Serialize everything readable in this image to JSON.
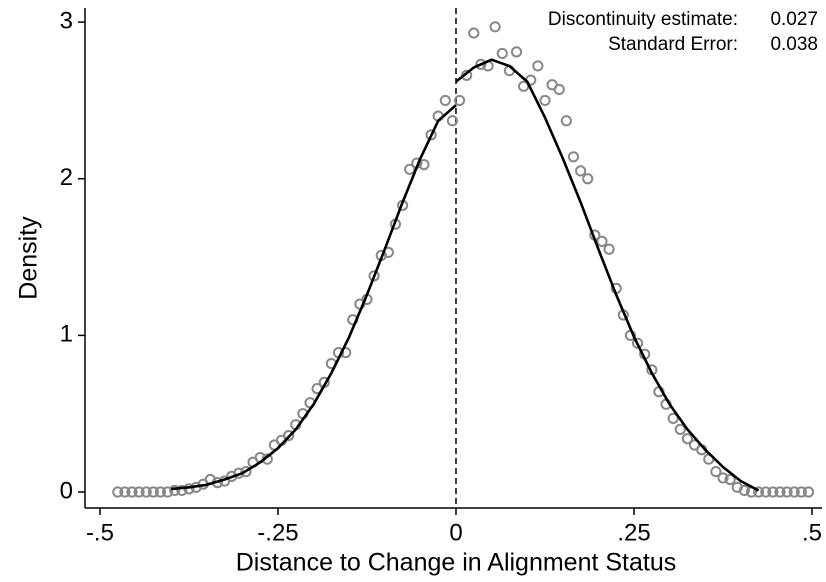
{
  "chart_data": {
    "type": "scatter",
    "x_label": "Distance to Change in Alignment Status",
    "y_label": "Density",
    "annotations": [
      {
        "label": "Discontinuity estimate:",
        "value": 0.027
      },
      {
        "label": "Standard Error:",
        "value": 0.038
      }
    ],
    "x": [
      -0.475,
      -0.465,
      -0.455,
      -0.445,
      -0.435,
      -0.425,
      -0.415,
      -0.405,
      -0.395,
      -0.385,
      -0.375,
      -0.365,
      -0.355,
      -0.345,
      -0.335,
      -0.325,
      -0.315,
      -0.305,
      -0.295,
      -0.285,
      -0.275,
      -0.265,
      -0.255,
      -0.245,
      -0.235,
      -0.225,
      -0.215,
      -0.205,
      -0.195,
      -0.185,
      -0.175,
      -0.165,
      -0.155,
      -0.145,
      -0.135,
      -0.125,
      -0.115,
      -0.105,
      -0.095,
      -0.085,
      -0.075,
      -0.065,
      -0.055,
      -0.045,
      -0.035,
      -0.025,
      -0.015,
      -0.005,
      0.005,
      0.015,
      0.025,
      0.035,
      0.045,
      0.055,
      0.065,
      0.075,
      0.085,
      0.095,
      0.105,
      0.115,
      0.125,
      0.135,
      0.145,
      0.155,
      0.165,
      0.175,
      0.185,
      0.195,
      0.205,
      0.215,
      0.225,
      0.235,
      0.245,
      0.255,
      0.265,
      0.275,
      0.285,
      0.295,
      0.305,
      0.315,
      0.325,
      0.335,
      0.345,
      0.355,
      0.365,
      0.375,
      0.385,
      0.395,
      0.405,
      0.415,
      0.425,
      0.435,
      0.445,
      0.455,
      0.465,
      0.475,
      0.485,
      0.495
    ],
    "values": [
      0,
      0,
      0,
      0,
      0,
      0,
      0,
      0,
      0.01,
      0.01,
      0.02,
      0.03,
      0.05,
      0.08,
      0.06,
      0.07,
      0.1,
      0.12,
      0.13,
      0.19,
      0.22,
      0.21,
      0.3,
      0.33,
      0.36,
      0.43,
      0.5,
      0.57,
      0.66,
      0.7,
      0.82,
      0.89,
      0.89,
      1.1,
      1.2,
      1.23,
      1.38,
      1.51,
      1.53,
      1.71,
      1.83,
      2.06,
      2.1,
      2.09,
      2.28,
      2.4,
      2.5,
      2.37,
      2.5,
      2.66,
      2.93,
      2.73,
      2.72,
      2.97,
      2.8,
      2.69,
      2.81,
      2.59,
      2.63,
      2.72,
      2.5,
      2.6,
      2.57,
      2.37,
      2.14,
      2.05,
      2.0,
      1.64,
      1.6,
      1.55,
      1.3,
      1.13,
      1.0,
      0.95,
      0.88,
      0.78,
      0.64,
      0.56,
      0.47,
      0.4,
      0.34,
      0.3,
      0.27,
      0.21,
      0.13,
      0.09,
      0.08,
      0.03,
      0.01,
      0,
      0,
      0,
      0,
      0,
      0,
      0,
      0,
      0
    ],
    "marker_color": "#888888",
    "fits": [
      {
        "color": "#000000",
        "x": [
          -0.4,
          -0.375,
          -0.35,
          -0.325,
          -0.3,
          -0.275,
          -0.25,
          -0.225,
          -0.2,
          -0.175,
          -0.15,
          -0.125,
          -0.1,
          -0.075,
          -0.05,
          -0.025,
          0
        ],
        "values": [
          0.02,
          0.03,
          0.046,
          0.08,
          0.12,
          0.19,
          0.28,
          0.4,
          0.56,
          0.76,
          0.99,
          1.26,
          1.55,
          1.85,
          2.13,
          2.37,
          2.47
        ]
      },
      {
        "color": "#000000",
        "x": [
          0,
          0.025,
          0.05,
          0.075,
          0.1,
          0.125,
          0.15,
          0.175,
          0.2,
          0.225,
          0.25,
          0.275,
          0.3,
          0.325,
          0.35,
          0.375,
          0.4,
          0.425
        ],
        "values": [
          2.62,
          2.71,
          2.76,
          2.72,
          2.62,
          2.39,
          2.13,
          1.85,
          1.55,
          1.26,
          0.99,
          0.76,
          0.56,
          0.4,
          0.27,
          0.16,
          0.07,
          0.01
        ]
      }
    ],
    "cutoff": 0,
    "xlim": [
      -0.521,
      0.514
    ],
    "ylim": [
      -0.102,
      3.09
    ],
    "xticks": [
      {
        "value": -0.5,
        "label": "-.5"
      },
      {
        "value": -0.25,
        "label": "-.25"
      },
      0,
      {
        "value": 0.25,
        "label": ".25"
      },
      {
        "value": 0.5,
        "label": ".5"
      }
    ],
    "yticks": [
      0,
      1,
      2,
      3
    ]
  }
}
